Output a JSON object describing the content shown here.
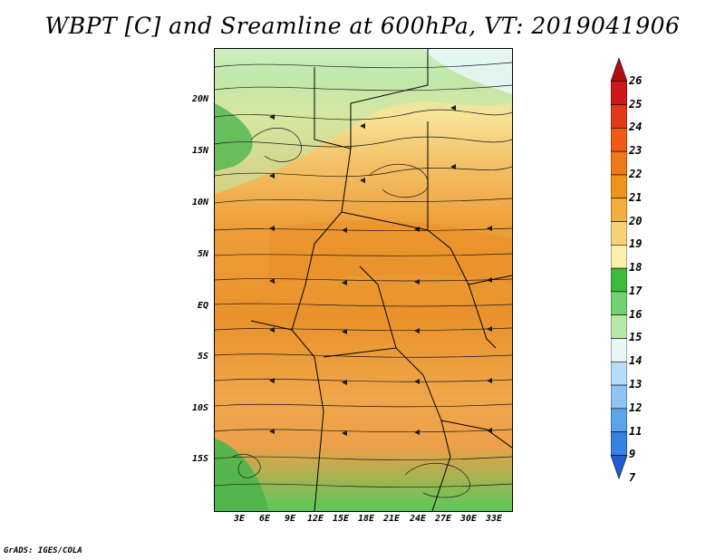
{
  "title": "WBPT [C] and Sreamline at 600hPa, VT: 2019041906",
  "lat_labels": [
    "20N",
    "15N",
    "10N",
    "5N",
    "EQ",
    "5S",
    "10S",
    "15S"
  ],
  "lon_labels": [
    "3E",
    "6E",
    "9E",
    "12E",
    "15E",
    "18E",
    "21E",
    "24E",
    "27E",
    "30E",
    "33E"
  ],
  "colorbar": {
    "levels": [
      "26",
      "25",
      "24",
      "23",
      "22",
      "21",
      "20",
      "19",
      "18",
      "17",
      "16",
      "15",
      "14",
      "13",
      "12",
      "11",
      "9",
      "7"
    ],
    "colors": [
      "#b01010",
      "#cc1a1a",
      "#e03a1a",
      "#ef5a14",
      "#f0781a",
      "#ef941a",
      "#f3af3a",
      "#f7d27a",
      "#fbefb0",
      "#3dbb3d",
      "#72d272",
      "#b7e8a8",
      "#e6f7f6",
      "#b8dcf7",
      "#8ec4f2",
      "#5aa4ea",
      "#3682e0",
      "#1f5ed2"
    ]
  },
  "footer": "GrADS: IGES/COLA"
}
